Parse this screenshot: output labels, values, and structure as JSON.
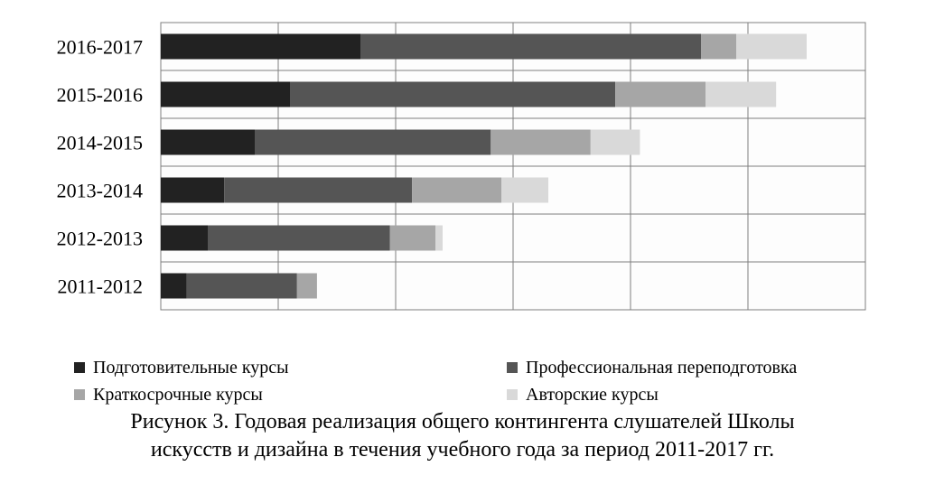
{
  "chart_data": {
    "type": "bar",
    "orientation": "horizontal",
    "stacked": true,
    "categories": [
      "2016-2017",
      "2015-2016",
      "2014-2015",
      "2013-2014",
      "2012-2013",
      "2011-2012"
    ],
    "series": [
      {
        "name": "Подготовительные курсы",
        "color": "#222222",
        "values": [
          17,
          11,
          8,
          5.4,
          4,
          2.2
        ]
      },
      {
        "name": "Профессиональная переподготовка",
        "color": "#555555",
        "values": [
          29,
          27.7,
          20.1,
          16,
          15.5,
          9.4
        ]
      },
      {
        "name": "Краткосрочные курсы",
        "color": "#a6a6a6",
        "values": [
          3,
          7.7,
          8.5,
          7.6,
          3.9,
          1.7
        ]
      },
      {
        "name": "Авторские курсы",
        "color": "#d9d9d9",
        "values": [
          6,
          6,
          4.2,
          4,
          0.6,
          0
        ]
      }
    ],
    "xlim": [
      0,
      60
    ],
    "x_tick_step": 10,
    "grid": true,
    "legend": "bottom"
  },
  "caption": {
    "line1": "Рисунок 3. Годовая реализация общего контингента слушателей Школы",
    "line2": "искусств и дизайна в течения учебного года за период 2011-2017 гг."
  }
}
